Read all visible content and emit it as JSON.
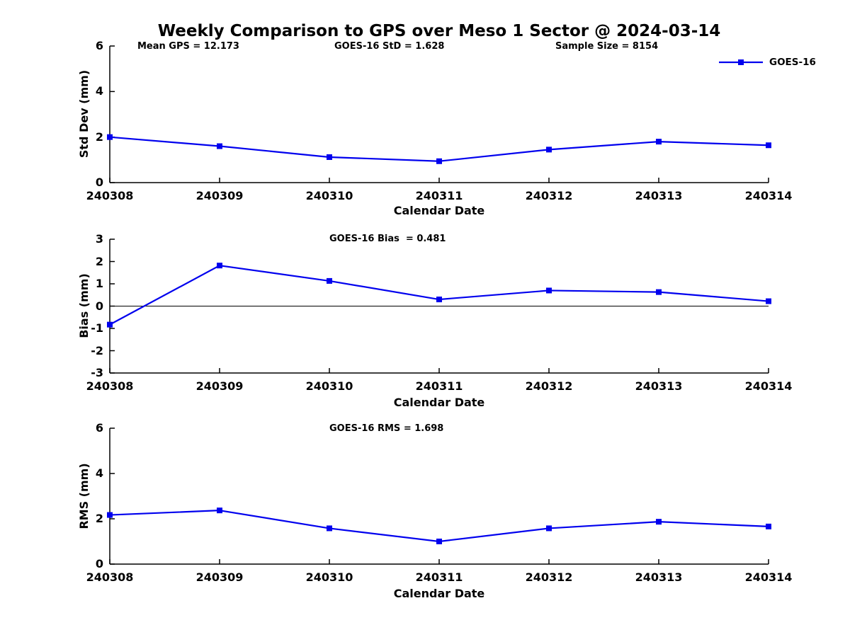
{
  "title": "Weekly Comparison to GPS over Meso 1 Sector @ 2024-03-14",
  "stats": {
    "mean_gps": "Mean GPS = 12.173",
    "goes16_std": "GOES-16 StD = 1.628",
    "sample_size": "Sample Size = 8154"
  },
  "legend": {
    "label": "GOES-16",
    "position": "top-right",
    "border": false
  },
  "colors": {
    "series": "#0000EE",
    "axis": "#000000",
    "text": "#000000",
    "background": "#FFFFFF"
  },
  "chart_data": [
    {
      "type": "line",
      "panel": "std_dev",
      "title": "",
      "ylabel": "Std Dev (mm)",
      "xlabel": "Calendar Date",
      "categories": [
        "240308",
        "240309",
        "240310",
        "240311",
        "240312",
        "240313",
        "240314"
      ],
      "series": [
        {
          "name": "GOES-16",
          "marker": "square",
          "values": [
            2.0,
            1.6,
            1.12,
            0.94,
            1.45,
            1.8,
            1.64
          ]
        }
      ],
      "ylim": [
        0,
        6
      ],
      "yticks": [
        0,
        2,
        4,
        6
      ],
      "zero_line": false,
      "grid": false
    },
    {
      "type": "line",
      "panel": "bias",
      "title": "GOES-16 Bias  = 0.481",
      "ylabel": "Bias (mm)",
      "xlabel": "Calendar Date",
      "categories": [
        "240308",
        "240309",
        "240310",
        "240311",
        "240312",
        "240313",
        "240314"
      ],
      "series": [
        {
          "name": "GOES-16",
          "marker": "square",
          "values": [
            -0.83,
            1.82,
            1.13,
            0.3,
            0.7,
            0.63,
            0.22
          ]
        }
      ],
      "ylim": [
        -3,
        3
      ],
      "yticks": [
        -3,
        -2,
        -1,
        0,
        1,
        2,
        3
      ],
      "zero_line": true,
      "grid": false
    },
    {
      "type": "line",
      "panel": "rms",
      "title": "GOES-16 RMS = 1.698",
      "ylabel": "RMS (mm)",
      "xlabel": "Calendar Date",
      "categories": [
        "240308",
        "240309",
        "240310",
        "240311",
        "240312",
        "240313",
        "240314"
      ],
      "series": [
        {
          "name": "GOES-16",
          "marker": "square",
          "values": [
            2.17,
            2.37,
            1.58,
            1.0,
            1.58,
            1.87,
            1.66
          ]
        }
      ],
      "ylim": [
        0,
        6
      ],
      "yticks": [
        0,
        2,
        4,
        6
      ],
      "zero_line": false,
      "grid": false
    }
  ]
}
